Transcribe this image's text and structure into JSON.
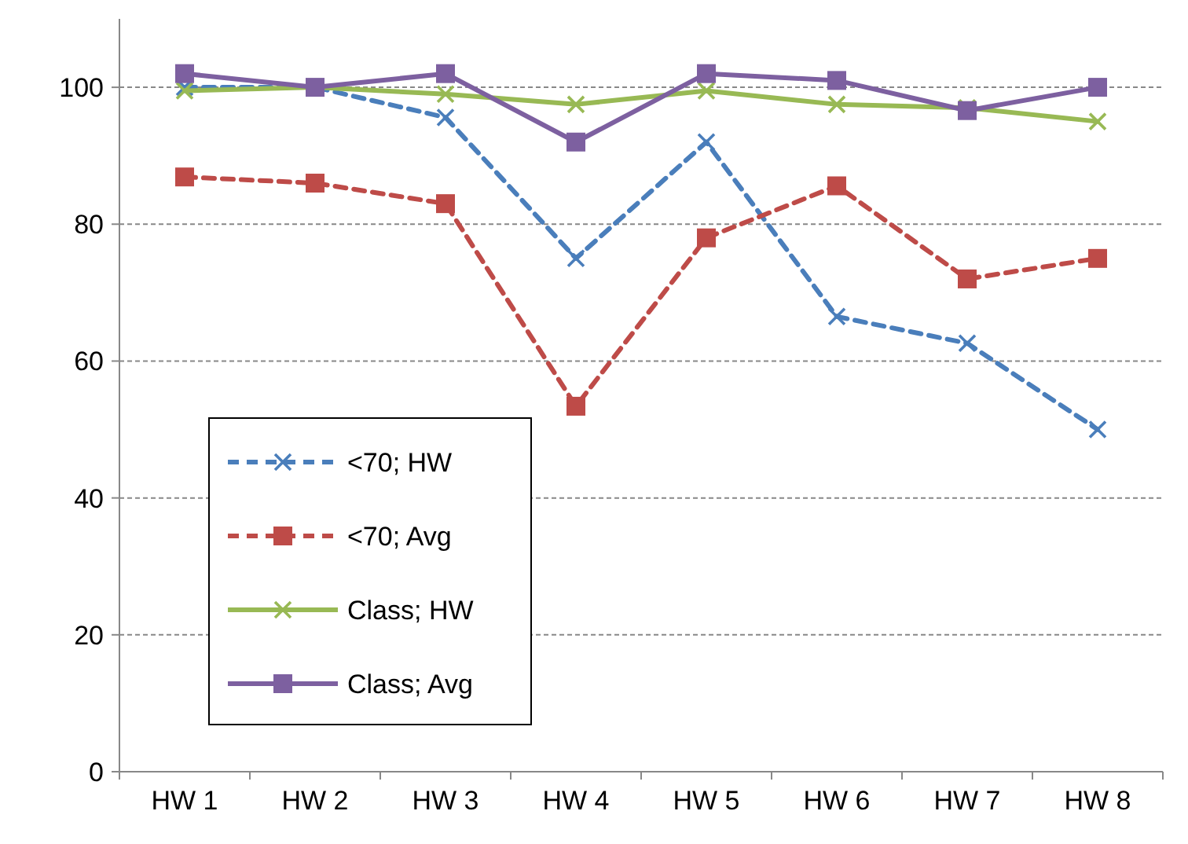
{
  "chart_data": {
    "type": "line",
    "categories": [
      "HW 1",
      "HW 2",
      "HW 3",
      "HW 4",
      "HW 5",
      "HW 6",
      "HW 7",
      "HW 8"
    ],
    "series": [
      {
        "name": "<70; HW",
        "color": "#4a7ebb",
        "marker": "cross",
        "line_style": "dashed",
        "values": [
          100,
          100,
          95.6,
          75,
          92,
          66.5,
          62.6,
          50
        ]
      },
      {
        "name": "<70; Avg",
        "color": "#be4b48",
        "marker": "square",
        "line_style": "dashed",
        "values": [
          86.9,
          86,
          83,
          53.4,
          78,
          85.6,
          72,
          75
        ]
      },
      {
        "name": "Class; HW",
        "color": "#98b954",
        "marker": "cross",
        "line_style": "solid",
        "values": [
          99.5,
          100,
          99,
          97.5,
          99.5,
          97.5,
          97,
          95
        ]
      },
      {
        "name": "Class; Avg",
        "color": "#7d60a0",
        "marker": "square",
        "line_style": "solid",
        "values": [
          102,
          100,
          102,
          92,
          102,
          101,
          96.6,
          100
        ]
      }
    ],
    "ylim": [
      0,
      110
    ],
    "yticks": [
      0,
      20,
      40,
      60,
      80,
      100
    ],
    "grid": "y",
    "legend": "bottom left"
  }
}
